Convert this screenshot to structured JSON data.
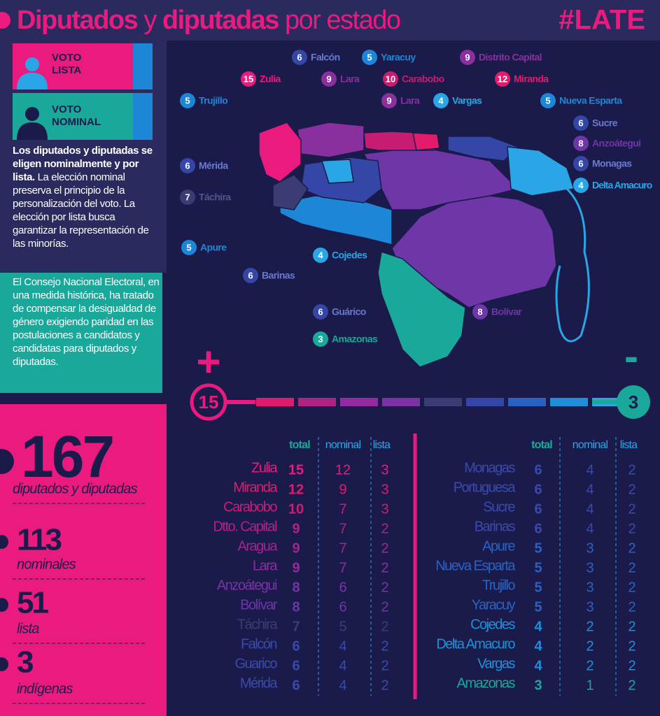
{
  "header": {
    "title_1": "Diputados",
    "title_2": "y",
    "title_3": "diputadas",
    "title_4": "por estado",
    "brand": "#LATE"
  },
  "legend": {
    "lista": "VOTO LISTA",
    "nominal": "VOTO NOMINAL"
  },
  "intro": {
    "bold": "Los diputados y diputadas se eligen nominalmente y por lista.",
    "rest": " La elección nominal preserva el principio de la personalización del voto. La elección por lista busca garantizar la representación de las minorías.",
    "note": "El Consejo Nacional Electoral, en una medida histórica, ha tratado de compensar la desigualdad de género exigiendo paridad en las postulaciones a candidatos y candidatas para diputados y diputadas."
  },
  "stats": [
    {
      "value": "167",
      "label": "diputados y diputadas"
    },
    {
      "value": "113",
      "label": "nominales"
    },
    {
      "value": "51",
      "label": "lista"
    },
    {
      "value": "3",
      "label": "indígenas"
    }
  ],
  "map_labels": [
    {
      "number": 6,
      "name": "Falcón",
      "color": "#3446a6"
    },
    {
      "number": 5,
      "name": "Yaracuy",
      "color": "#1e86d6"
    },
    {
      "number": 9,
      "name": "Distrito Capital",
      "color": "#8a2f9e"
    },
    {
      "number": 15,
      "name": "Zulia",
      "color": "#ea1a7f"
    },
    {
      "number": 9,
      "name": "Lara",
      "color": "#8a2f9e"
    },
    {
      "number": 10,
      "name": "Carabobo",
      "color": "#c81c72"
    },
    {
      "number": 12,
      "name": "Miranda",
      "color": "#e41a6c"
    },
    {
      "number": 5,
      "name": "Trujillo",
      "color": "#1e86d6"
    },
    {
      "number": 9,
      "name": "Lara",
      "color": "#8a2f9e"
    },
    {
      "number": 4,
      "name": "Vargas",
      "color": "#2aa6e6"
    },
    {
      "number": 5,
      "name": "Nueva Esparta",
      "color": "#1e86d6"
    },
    {
      "number": 6,
      "name": "Sucre",
      "color": "#3446a6"
    },
    {
      "number": 8,
      "name": "Anzoátegui",
      "color": "#6e36a6"
    },
    {
      "number": 6,
      "name": "Mérida",
      "color": "#3446a6"
    },
    {
      "number": 6,
      "name": "Monagas",
      "color": "#3446a6"
    },
    {
      "number": 4,
      "name": "Delta Amacuro",
      "color": "#2aa6e6"
    },
    {
      "number": 7,
      "name": "Táchira",
      "color": "#3c3c74"
    },
    {
      "number": 5,
      "name": "Apure",
      "color": "#1e86d6"
    },
    {
      "number": 4,
      "name": "Cojedes",
      "color": "#2aa6e6"
    },
    {
      "number": 6,
      "name": "Barinas",
      "color": "#3446a6"
    },
    {
      "number": 6,
      "name": "Guárico",
      "color": "#3446a6"
    },
    {
      "number": 8,
      "name": "Bolívar",
      "color": "#6e36a6"
    },
    {
      "number": 3,
      "name": "Amazonas",
      "color": "#1aa89a"
    }
  ],
  "scale": {
    "more": "+",
    "less": "-",
    "max": "15",
    "min": "3"
  },
  "tables": {
    "headers": [
      "total",
      "nominal",
      "lista"
    ],
    "left": [
      {
        "state": "Zulia",
        "total": 15,
        "nominal": 12,
        "lista": 3,
        "color": "#ea1a7f"
      },
      {
        "state": "Miranda",
        "total": 12,
        "nominal": 9,
        "lista": 3,
        "color": "#e01a6c"
      },
      {
        "state": "Carabobo",
        "total": 10,
        "nominal": 7,
        "lista": 3,
        "color": "#cc1c76"
      },
      {
        "state": "Dtto. Capital",
        "total": 9,
        "nominal": 7,
        "lista": 2,
        "color": "#b02284"
      },
      {
        "state": "Aragua",
        "total": 9,
        "nominal": 7,
        "lista": 2,
        "color": "#a0268e"
      },
      {
        "state": "Lara",
        "total": 9,
        "nominal": 7,
        "lista": 2,
        "color": "#922aa0"
      },
      {
        "state": "Anzoátegui",
        "total": 8,
        "nominal": 6,
        "lista": 2,
        "color": "#7a32a4"
      },
      {
        "state": "Bolívar",
        "total": 8,
        "nominal": 6,
        "lista": 2,
        "color": "#6c36a6"
      },
      {
        "state": "Táchira",
        "total": 7,
        "nominal": 5,
        "lista": 2,
        "color": "#3c3c74"
      },
      {
        "state": "Falcón",
        "total": 6,
        "nominal": 4,
        "lista": 2,
        "color": "#3a4aac"
      },
      {
        "state": "Guarico",
        "total": 6,
        "nominal": 4,
        "lista": 2,
        "color": "#3a4aac"
      },
      {
        "state": "Mérida",
        "total": 6,
        "nominal": 4,
        "lista": 2,
        "color": "#3a4aac"
      }
    ],
    "right": [
      {
        "state": "Monagas",
        "total": 6,
        "nominal": 4,
        "lista": 2,
        "color": "#3a4aac"
      },
      {
        "state": "Portuguesa",
        "total": 6,
        "nominal": 4,
        "lista": 2,
        "color": "#3a4aac"
      },
      {
        "state": "Sucre",
        "total": 6,
        "nominal": 4,
        "lista": 2,
        "color": "#3a4aac"
      },
      {
        "state": "Barinas",
        "total": 6,
        "nominal": 4,
        "lista": 2,
        "color": "#3a4aac"
      },
      {
        "state": "Apure",
        "total": 5,
        "nominal": 3,
        "lista": 2,
        "color": "#2a62c4"
      },
      {
        "state": "Nueva Esparta",
        "total": 5,
        "nominal": 3,
        "lista": 2,
        "color": "#2a62c4"
      },
      {
        "state": "Trujillo",
        "total": 5,
        "nominal": 3,
        "lista": 2,
        "color": "#2a62c4"
      },
      {
        "state": "Yaracuy",
        "total": 5,
        "nominal": 3,
        "lista": 2,
        "color": "#2a62c4"
      },
      {
        "state": "Cojedes",
        "total": 4,
        "nominal": 2,
        "lista": 2,
        "color": "#1e90da"
      },
      {
        "state": "Delta Amacuro",
        "total": 4,
        "nominal": 2,
        "lista": 2,
        "color": "#1e90da"
      },
      {
        "state": "Vargas",
        "total": 4,
        "nominal": 2,
        "lista": 2,
        "color": "#1e90da"
      },
      {
        "state": "Amazonas",
        "total": 3,
        "nominal": 1,
        "lista": 2,
        "color": "#1aa89a"
      }
    ]
  }
}
